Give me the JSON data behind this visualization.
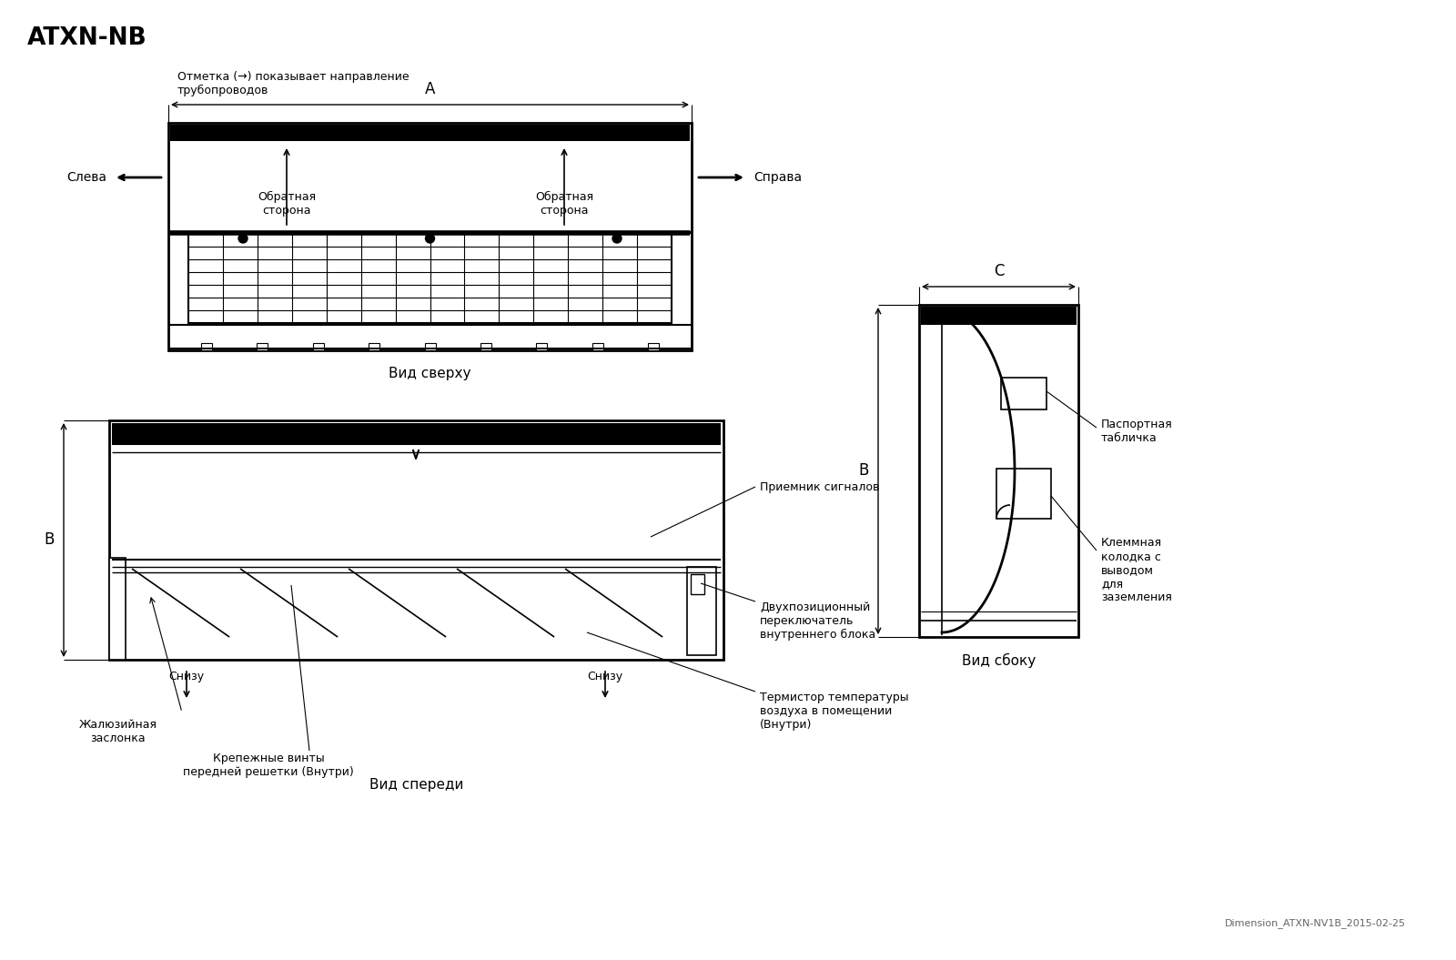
{
  "title": "ATXN-NB",
  "bg_color": "#ffffff",
  "line_color": "#000000",
  "note_text": "Отметка (→) показывает направление\nтрубопроводов",
  "dim_A": "A",
  "dim_B": "B",
  "dim_C": "C",
  "label_left": "Слева",
  "label_right": "Справа",
  "label_back1": "Обратная\nсторона",
  "label_back2": "Обратная\nсторона",
  "view_top": "Вид сверху",
  "view_front": "Вид спереди",
  "view_side": "Вид сбоку",
  "label_signal": "Приемник сигналов",
  "label_switch": "Двухпозиционный\nпереключатель\nвнутреннего блока",
  "label_thermistor": "Термистор температуры\nвоздуха в помещении\n(Внутри)",
  "label_louver": "Жалюзийная\nзаслонка",
  "label_screws": "Крепежные винты\nпередней решетки (Внутри)",
  "label_bottom1": "Снизу",
  "label_bottom2": "Снизу",
  "label_passport": "Паспортная\nтабличка",
  "label_terminal": "Клеммная\nколодка с\nвыводом\nдля\nзаземления",
  "footer": "Dimension_ATXN-NV1B_2015-02-25"
}
